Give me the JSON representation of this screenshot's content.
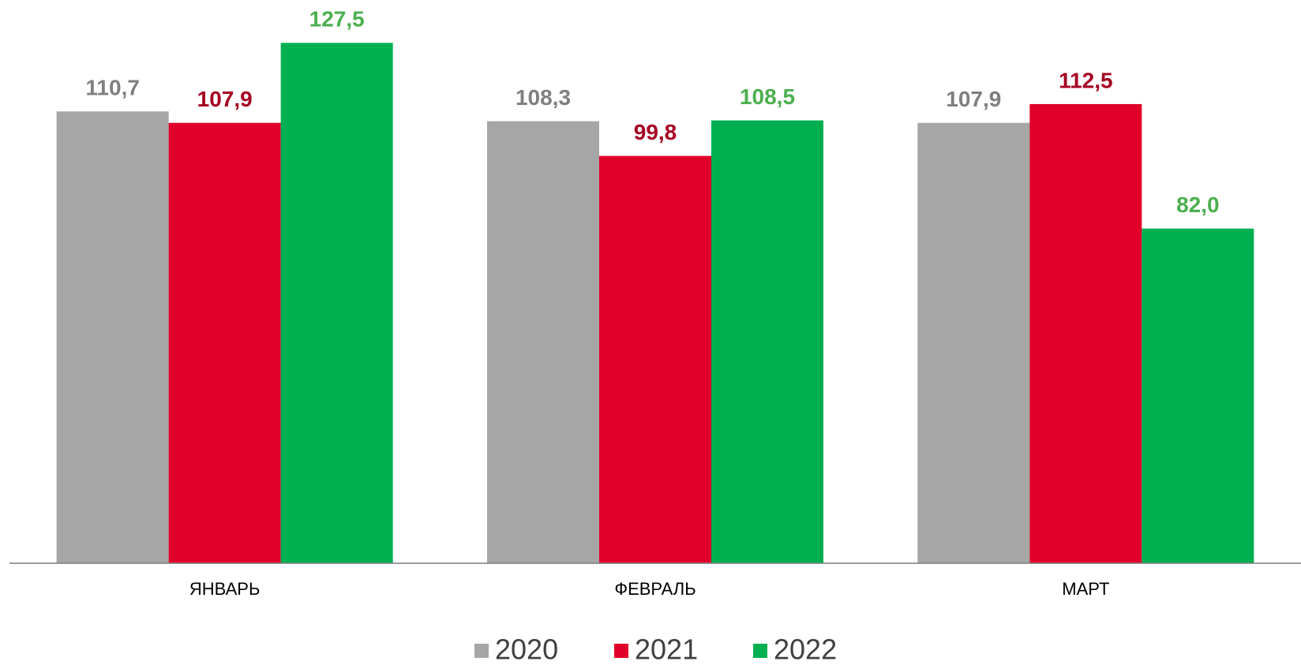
{
  "chart_data": {
    "type": "bar",
    "categories": [
      "ЯНВАРЬ",
      "ФЕВРАЛЬ",
      "МАРТ"
    ],
    "series": [
      {
        "name": "2020",
        "color": "#a6a6a6",
        "label_color": "#7f7f7f",
        "values": [
          110.7,
          108.3,
          107.9
        ],
        "value_labels": [
          "110,7",
          "108,3",
          "107,9"
        ]
      },
      {
        "name": "2021",
        "color": "#e0002a",
        "label_color": "#a50021",
        "values": [
          107.9,
          99.8,
          112.5
        ],
        "value_labels": [
          "107,9",
          "99,8",
          "112,5"
        ]
      },
      {
        "name": "2022",
        "color": "#00b050",
        "label_color": "#4caf50",
        "values": [
          127.5,
          108.5,
          82.0
        ],
        "value_labels": [
          "127,5",
          "108,5",
          "82,0"
        ]
      }
    ],
    "ylim": [
      0,
      138
    ],
    "legend": "bottom"
  }
}
